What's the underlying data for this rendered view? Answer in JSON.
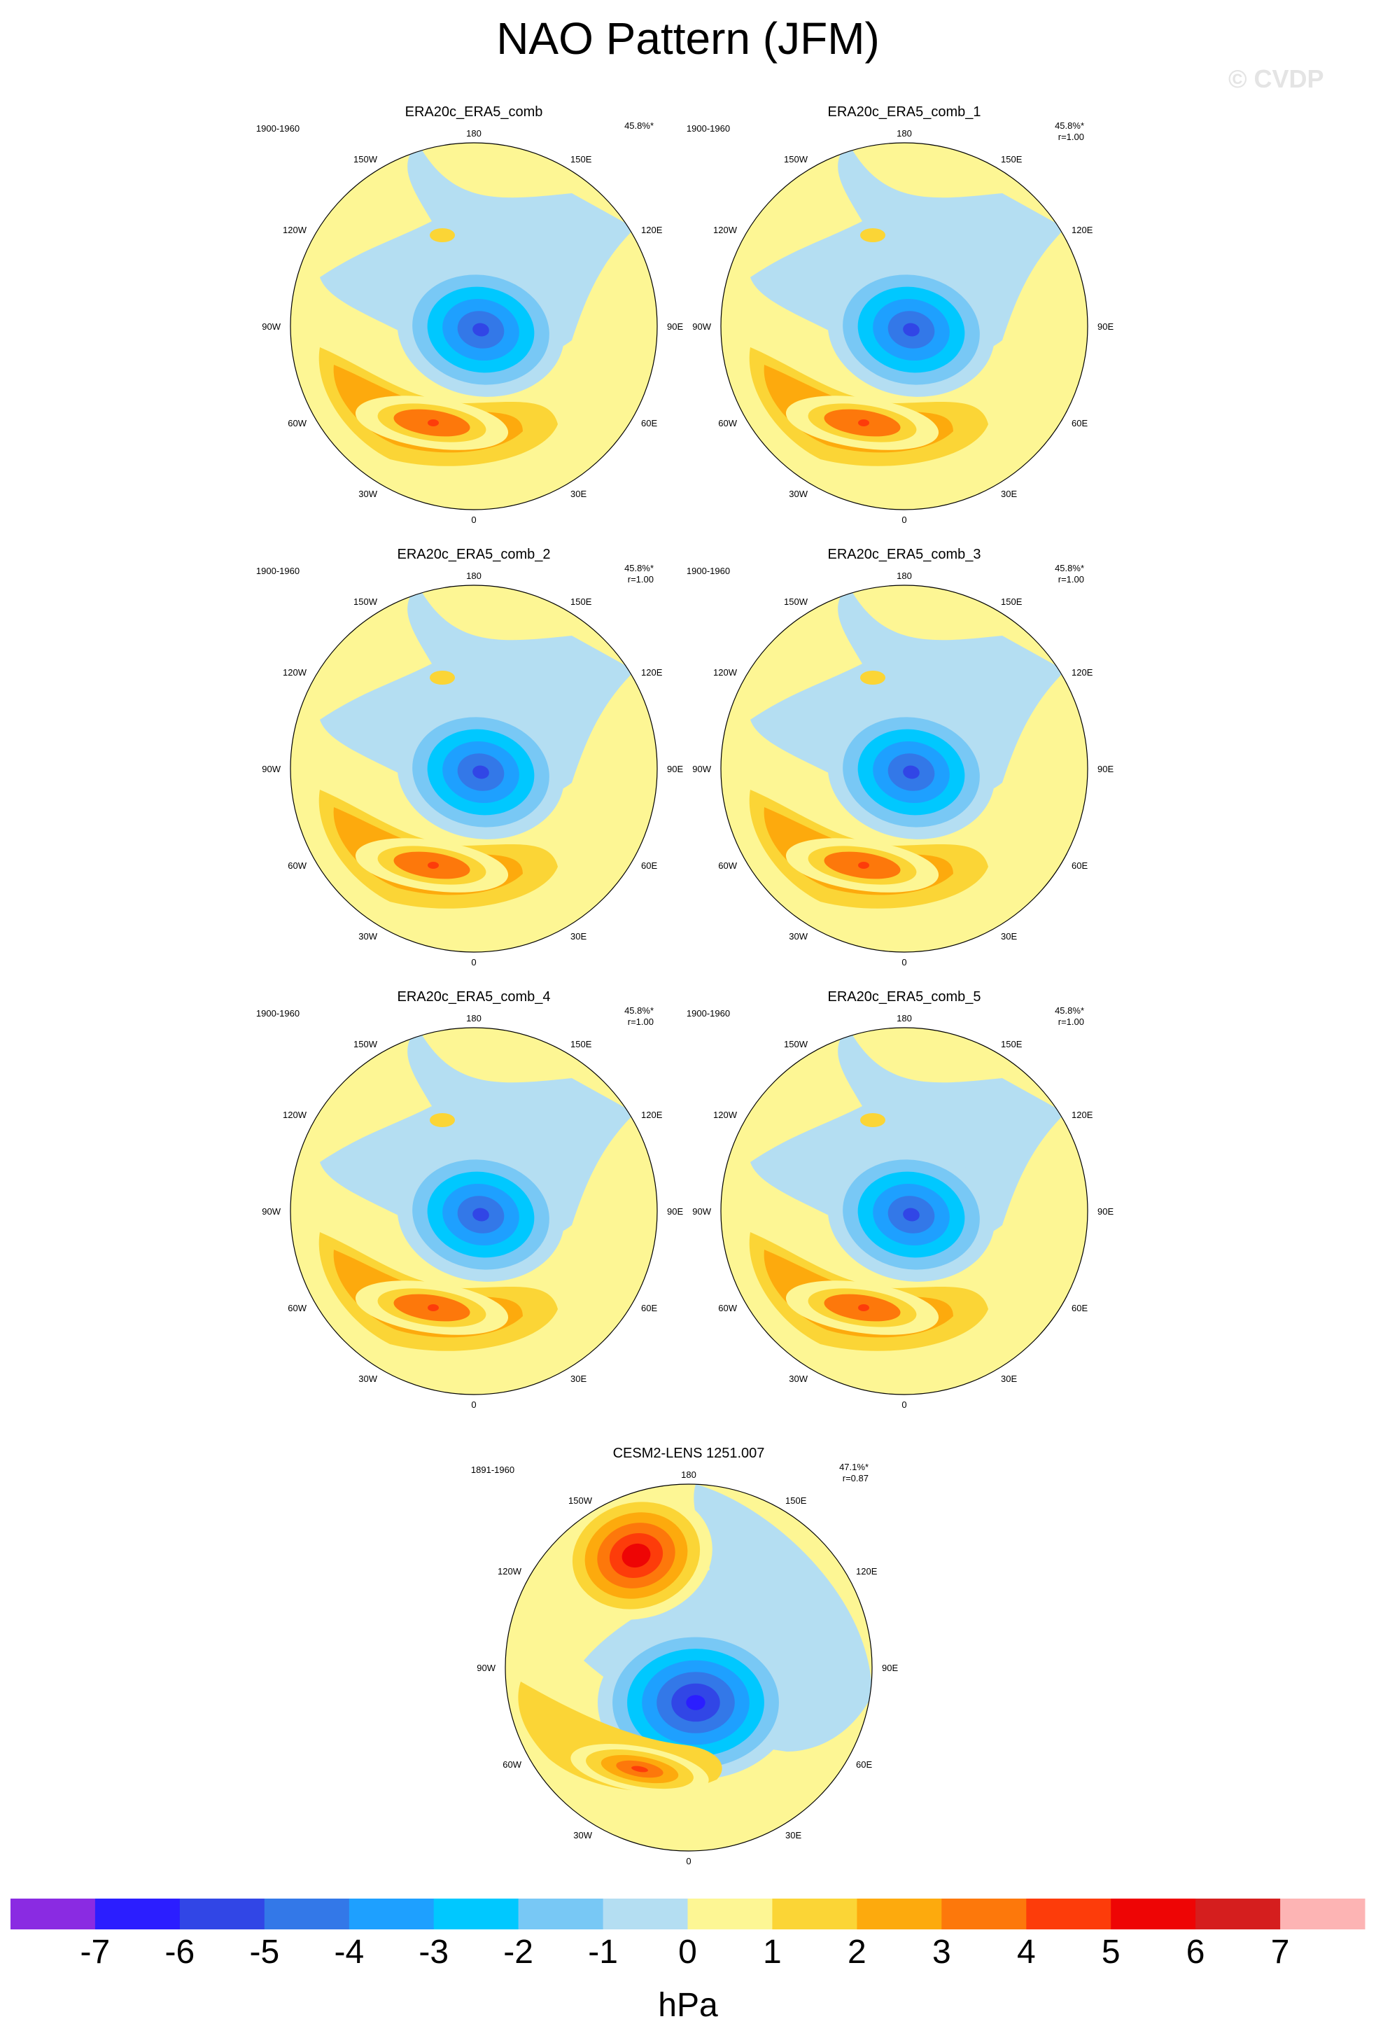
{
  "title": "NAO Pattern (JFM)",
  "watermark": "© CVDP",
  "chart_data": {
    "type": "contour-map",
    "projection": "North polar stereographic",
    "variable": "Sea level pressure NAO EOF pattern",
    "units": "hPa",
    "lon_labels": [
      "180",
      "150E",
      "120E",
      "90E",
      "60E",
      "30E",
      "0",
      "30W",
      "60W",
      "90W",
      "120W",
      "150W"
    ],
    "colorbar": {
      "labels": [
        "-7",
        "-6",
        "-5",
        "-4",
        "-3",
        "-2",
        "-1",
        "0",
        "1",
        "2",
        "3",
        "4",
        "5",
        "6",
        "7"
      ],
      "colors": [
        "#8a2be2",
        "#2b1eff",
        "#3146e6",
        "#3378e8",
        "#1ea0ff",
        "#00c8ff",
        "#78c8f5",
        "#b4def2",
        "#fdf694",
        "#fbd536",
        "#fdaa0d",
        "#fd780b",
        "#fd3c0a",
        "#ee0505",
        "#d51e1e",
        "#fdb4b4"
      ]
    },
    "panels": [
      {
        "name": "ERA20c_ERA5_comb",
        "period": "1900-1960",
        "pct": "45.8%*",
        "r": "",
        "variant": "obs",
        "min": -5.2,
        "max": 4.6
      },
      {
        "name": "ERA20c_ERA5_comb_1",
        "period": "1900-1960",
        "pct": "45.8%*",
        "r": "r=1.00",
        "variant": "obs",
        "min": -5.2,
        "max": 4.6
      },
      {
        "name": "ERA20c_ERA5_comb_2",
        "period": "1900-1960",
        "pct": "45.8%*",
        "r": "r=1.00",
        "variant": "obs",
        "min": -5.2,
        "max": 4.6
      },
      {
        "name": "ERA20c_ERA5_comb_3",
        "period": "1900-1960",
        "pct": "45.8%*",
        "r": "r=1.00",
        "variant": "obs",
        "min": -5.2,
        "max": 4.6
      },
      {
        "name": "ERA20c_ERA5_comb_4",
        "period": "1900-1960",
        "pct": "45.8%*",
        "r": "r=1.00",
        "variant": "obs",
        "min": -5.2,
        "max": 4.6
      },
      {
        "name": "ERA20c_ERA5_comb_5",
        "period": "1900-1960",
        "pct": "45.8%*",
        "r": "r=1.00",
        "variant": "obs",
        "min": -5.2,
        "max": 4.6
      },
      {
        "name": "CESM2-LENS 1251.007",
        "period": "1891-1960",
        "pct": "47.1%*",
        "r": "r=0.87",
        "variant": "model",
        "min": -6.3,
        "max": 5.5
      }
    ]
  }
}
